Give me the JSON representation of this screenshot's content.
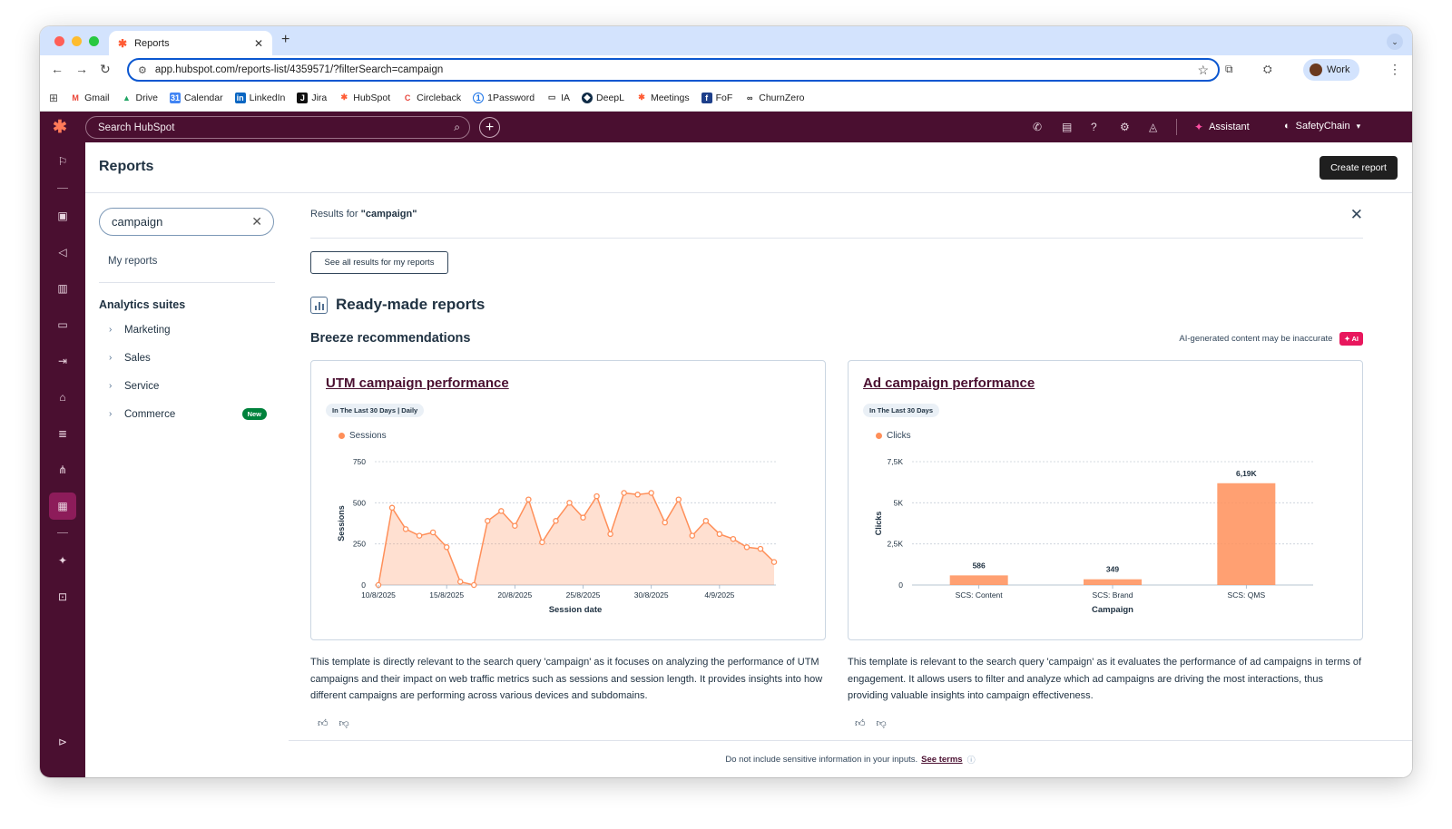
{
  "browser": {
    "tab_title": "Reports",
    "url": "app.hubspot.com/reports-list/4359571/?filterSearch=campaign",
    "profile_label": "Work",
    "bookmarks": [
      {
        "label": "Gmail",
        "icon": "gmail-icon"
      },
      {
        "label": "Drive",
        "icon": "drive-icon"
      },
      {
        "label": "Calendar",
        "icon": "calendar-icon"
      },
      {
        "label": "LinkedIn",
        "icon": "linkedin-icon"
      },
      {
        "label": "Jira",
        "icon": "jira-icon"
      },
      {
        "label": "HubSpot",
        "icon": "hubspot-icon"
      },
      {
        "label": "Circleback",
        "icon": "circleback-icon"
      },
      {
        "label": "1Password",
        "icon": "onepassword-icon"
      },
      {
        "label": "IA",
        "icon": "folder-icon"
      },
      {
        "label": "DeepL",
        "icon": "deepl-icon"
      },
      {
        "label": "Meetings",
        "icon": "hubspot-icon"
      },
      {
        "label": "FoF",
        "icon": "fof-icon"
      },
      {
        "label": "ChurnZero",
        "icon": "churnzero-icon"
      }
    ]
  },
  "topbar": {
    "search_placeholder": "Search HubSpot",
    "assistant_label": "Assistant",
    "account_label": "SafetyChain"
  },
  "page": {
    "title": "Reports",
    "create_button": "Create report"
  },
  "filter": {
    "search_value": "campaign",
    "my_reports": "My reports",
    "analytics_heading": "Analytics suites",
    "suites": [
      {
        "label": "Marketing"
      },
      {
        "label": "Sales"
      },
      {
        "label": "Service"
      },
      {
        "label": "Commerce",
        "badge": "New"
      }
    ]
  },
  "results": {
    "prefix": "Results for ",
    "query": "\"campaign\"",
    "see_all_button": "See all results for my reports",
    "ready_made_heading": "Ready-made reports",
    "breeze_heading": "Breeze recommendations",
    "ai_disclaimer": "AI-generated content may be inaccurate",
    "ai_badge": "✦ AI"
  },
  "cards": [
    {
      "title": "UTM campaign performance",
      "badge": "In The Last 30 Days | Daily",
      "description": "This template is directly relevant to the search query 'campaign' as it focuses on analyzing the performance of UTM campaigns and their impact on web traffic metrics such as sessions and session length. It provides insights into how different campaigns are performing across various devices and subdomains."
    },
    {
      "title": "Ad campaign performance",
      "badge": "In The Last 30 Days",
      "description": "This template is relevant to the search query 'campaign' as it evaluates the performance of ad campaigns in terms of engagement. It allows users to filter and analyze which ad campaigns are driving the most interactions, thus providing valuable insights into campaign effectiveness."
    }
  ],
  "footer": {
    "text": "Do not include sensitive information in your inputs.",
    "link": "See terms"
  },
  "colors": {
    "hubspot_nav": "#4a0f30",
    "chart_fill": "#ff8f59",
    "accent_link": "#4a0f30",
    "new_badge": "#00823c",
    "ai_badge": "#e8175d"
  },
  "chart_data": [
    {
      "type": "area",
      "legend": "Sessions",
      "xlabel": "Session date",
      "ylabel": "Sessions",
      "ylim": [
        0,
        750
      ],
      "yticks": [
        "0",
        "250",
        "500",
        "750"
      ],
      "xticks": [
        "10/8/2025",
        "15/8/2025",
        "20/8/2025",
        "25/8/2025",
        "30/8/2025",
        "4/9/2025"
      ],
      "values": [
        0,
        470,
        340,
        300,
        320,
        230,
        20,
        0,
        390,
        450,
        360,
        520,
        260,
        390,
        500,
        410,
        540,
        310,
        560,
        550,
        560,
        380,
        520,
        300,
        390,
        310,
        280,
        230,
        220,
        140
      ],
      "grid": true
    },
    {
      "type": "bar",
      "legend": "Clicks",
      "xlabel": "Campaign",
      "ylabel": "Clicks",
      "ylim": [
        0,
        7500
      ],
      "yticks": [
        "0",
        "2,5K",
        "5K",
        "7,5K"
      ],
      "categories": [
        "SCS: Content",
        "SCS: Brand",
        "SCS: QMS"
      ],
      "values": [
        586,
        349,
        6190
      ],
      "value_labels": [
        "586",
        "349",
        "6,19K"
      ],
      "grid": true
    }
  ]
}
